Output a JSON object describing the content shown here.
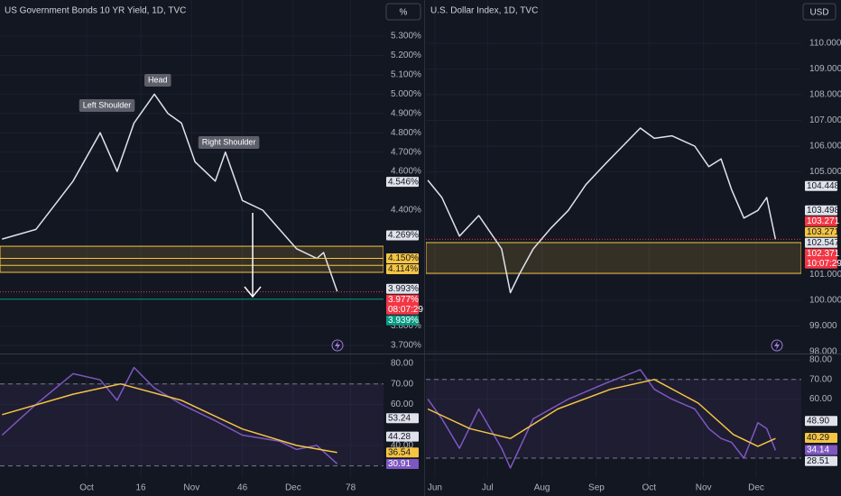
{
  "chart_data": [
    {
      "type": "line",
      "title": "US Government Bonds 10 YR Yield, 1D, TVC",
      "unit_button": "%",
      "xlim": [
        -25.6,
        87.7
      ],
      "xticks": [
        {
          "value": 0,
          "label": "Oct"
        },
        16,
        {
          "value": 31,
          "label": "Nov"
        },
        46,
        {
          "value": 61,
          "label": "Dec"
        },
        78
      ],
      "ylim": [
        3.658,
        5.487
      ],
      "yticks": [
        {
          "value": 5.3,
          "label": "5.300%"
        },
        {
          "value": 5.2,
          "label": "5.200%"
        },
        {
          "value": 5.1,
          "label": "5.100%"
        },
        {
          "value": 5.0,
          "label": "5.000%"
        },
        {
          "value": 4.9,
          "label": "4.900%"
        },
        {
          "value": 4.8,
          "label": "4.800%"
        },
        {
          "value": 4.7,
          "label": "4.700%"
        },
        {
          "value": 4.6,
          "label": "4.600%"
        },
        {
          "value": 4.4,
          "label": "4.400%"
        },
        {
          "value": 3.8,
          "label": "3.800%"
        },
        {
          "value": 3.7,
          "label": "3.700%"
        }
      ],
      "zone": [
        4.078,
        4.213
      ],
      "zone_color": "#f5c542",
      "series": [
        {
          "color": "#e0e3eb",
          "x": [
            -25,
            -15,
            -4,
            4,
            9,
            14,
            20,
            24,
            28,
            32,
            38,
            41,
            46,
            52,
            57,
            62,
            68,
            70,
            74
          ],
          "values": [
            4.25,
            4.3,
            4.55,
            4.8,
            4.6,
            4.85,
            5.0,
            4.9,
            4.85,
            4.65,
            4.55,
            4.7,
            4.45,
            4.4,
            4.3,
            4.2,
            4.15,
            4.18,
            3.98
          ]
        }
      ],
      "annotations": [
        {
          "text": "Left Shoulder",
          "x": 6,
          "y": 4.941
        },
        {
          "text": "Head",
          "x": 21,
          "y": 5.072
        },
        {
          "text": "Right Shoulder",
          "x": 42,
          "y": 4.75
        }
      ],
      "price_labels": [
        {
          "value": 4.546,
          "label": "4.546%",
          "color": "#e0e3eb"
        },
        {
          "value": 4.269,
          "label": "4.269%",
          "color": "#e0e3eb"
        },
        {
          "value": 4.15,
          "label": "4.150%",
          "color": "#f5c542",
          "line": true
        },
        {
          "value": 4.114,
          "label": "4.114%",
          "color": "#f5c542",
          "line": true
        },
        {
          "value": 3.993,
          "label": "3.993%",
          "color": "#e0e3eb"
        },
        {
          "value": 3.977,
          "label": "3.977%",
          "color": "#f23645",
          "countdown": "08:07:29",
          "line": true
        },
        {
          "value": 3.939,
          "label": "3.939%",
          "color": "#089981",
          "line": true
        }
      ]
    },
    {
      "type": "line",
      "xlim": [
        -25.6,
        87.7
      ],
      "xticks": [
        {
          "value": 0,
          "label": "Oct"
        },
        16,
        {
          "value": 31,
          "label": "Nov"
        },
        46,
        {
          "value": 61,
          "label": "Dec"
        },
        78
      ],
      "ylim": [
        24.1,
        84.4
      ],
      "yticks": [
        {
          "value": 80,
          "label": "80.00"
        },
        {
          "value": 70,
          "label": "70.00"
        },
        {
          "value": 60,
          "label": "60.00"
        },
        {
          "value": 40,
          "label": "40.00"
        }
      ],
      "bands": [
        30,
        70
      ],
      "series": [
        {
          "color": "#7e57c2",
          "x": [
            -25,
            -15,
            -4,
            4,
            9,
            14,
            20,
            28,
            38,
            46,
            57,
            62,
            68,
            74
          ],
          "values": [
            45,
            60,
            75,
            72,
            62,
            78,
            68,
            60,
            52,
            45,
            42,
            38,
            40,
            31
          ]
        },
        {
          "color": "#f5c542",
          "x": [
            -25,
            -4,
            10,
            28,
            46,
            62,
            74
          ],
          "values": [
            55,
            65,
            70,
            62,
            48,
            40,
            36.5
          ]
        }
      ],
      "price_labels": [
        {
          "value": 53.24,
          "label": "53.24",
          "color": "#e0e3eb"
        },
        {
          "value": 44.28,
          "label": "44.28",
          "color": "#e0e3eb"
        },
        {
          "value": 36.54,
          "label": "36.54",
          "color": "#f5c542"
        },
        {
          "value": 30.91,
          "label": "30.91",
          "color": "#7e57c2"
        }
      ]
    },
    {
      "type": "line",
      "title": "U.S. Dollar Index, 1D, TVC",
      "unit_button": "USD",
      "xlim": [
        -5.1,
        208.7
      ],
      "xticks": [
        {
          "value": 0,
          "label": "Jun"
        },
        {
          "value": 30,
          "label": "Jul"
        },
        {
          "value": 61,
          "label": "Aug"
        },
        {
          "value": 92,
          "label": "Sep"
        },
        {
          "value": 122,
          "label": "Oct"
        },
        {
          "value": 153,
          "label": "Nov"
        },
        {
          "value": 183,
          "label": "Dec"
        }
      ],
      "ylim": [
        97.93,
        111.684
      ],
      "yticks": [
        {
          "value": 110,
          "label": "110.000"
        },
        {
          "value": 109,
          "label": "109.000"
        },
        {
          "value": 108,
          "label": "108.000"
        },
        {
          "value": 107,
          "label": "107.000"
        },
        {
          "value": 106,
          "label": "106.000"
        },
        {
          "value": 105,
          "label": "105.000"
        },
        {
          "value": 101,
          "label": "101.000"
        },
        {
          "value": 100,
          "label": "100.000"
        },
        {
          "value": 99,
          "label": "99.000"
        },
        {
          "value": 98,
          "label": "98.000"
        }
      ],
      "zone": [
        101.05,
        102.245
      ],
      "zone_color": "#f5c542",
      "series": [
        {
          "color": "#e0e3eb",
          "x": [
            -4,
            4,
            14,
            25,
            38,
            43,
            48,
            56,
            66,
            76,
            86,
            97,
            107,
            117,
            125,
            135,
            148,
            156,
            163,
            169,
            176,
            184,
            189,
            194
          ],
          "values": [
            104.67,
            104.0,
            102.5,
            103.3,
            102.0,
            100.3,
            101.0,
            102.0,
            102.8,
            103.5,
            104.5,
            105.3,
            106.0,
            106.7,
            106.3,
            106.4,
            106.0,
            105.2,
            105.5,
            104.3,
            103.2,
            103.5,
            104.0,
            102.371
          ]
        }
      ],
      "price_labels": [
        {
          "value": 104.448,
          "label": "104.448",
          "color": "#e0e3eb"
        },
        {
          "value": 103.498,
          "label": "103.498",
          "color": "#e0e3eb"
        },
        {
          "value": 103.271,
          "label": "103.271",
          "color": "#f23645"
        },
        {
          "value": 103.271,
          "label": "103.271",
          "color": "#f5c542"
        },
        {
          "value": 102.547,
          "label": "102.547",
          "color": "#e0e3eb"
        },
        {
          "value": 102.371,
          "label": "102.371",
          "color": "#f23645",
          "countdown": "10:07:29",
          "line": true
        }
      ]
    },
    {
      "type": "line",
      "xlim": [
        -5.1,
        208.7
      ],
      "xticks": [
        {
          "value": 0,
          "label": "Jun"
        },
        {
          "value": 30,
          "label": "Jul"
        },
        {
          "value": 61,
          "label": "Aug"
        },
        {
          "value": 92,
          "label": "Sep"
        },
        {
          "value": 122,
          "label": "Oct"
        },
        {
          "value": 153,
          "label": "Nov"
        },
        {
          "value": 183,
          "label": "Dec"
        }
      ],
      "ylim": [
        19.9,
        82.76
      ],
      "yticks": [
        {
          "value": 80,
          "label": "80.00"
        },
        {
          "value": 70,
          "label": "70.00"
        },
        {
          "value": 60,
          "label": "60.00"
        }
      ],
      "bands": [
        30,
        70
      ],
      "series": [
        {
          "color": "#7e57c2",
          "x": [
            -4,
            4,
            14,
            25,
            38,
            43,
            56,
            76,
            97,
            117,
            125,
            135,
            148,
            156,
            163,
            169,
            176,
            184,
            189,
            194
          ],
          "values": [
            60,
            50,
            35,
            55,
            35,
            25,
            50,
            60,
            68,
            75,
            65,
            60,
            55,
            45,
            40,
            38,
            30,
            48,
            45,
            34
          ]
        },
        {
          "color": "#f5c542",
          "x": [
            -4,
            20,
            43,
            70,
            100,
            125,
            150,
            170,
            184,
            194
          ],
          "values": [
            55,
            45,
            40,
            55,
            65,
            70,
            58,
            42,
            36,
            40
          ]
        }
      ],
      "price_labels": [
        {
          "value": 48.9,
          "label": "48.90",
          "color": "#e0e3eb"
        },
        {
          "value": 40.29,
          "label": "40.29",
          "color": "#f5c542"
        },
        {
          "value": 34.14,
          "label": "34.14",
          "color": "#7e57c2"
        },
        {
          "value": 28.51,
          "label": "28.51",
          "color": "#e0e3eb"
        }
      ]
    }
  ]
}
